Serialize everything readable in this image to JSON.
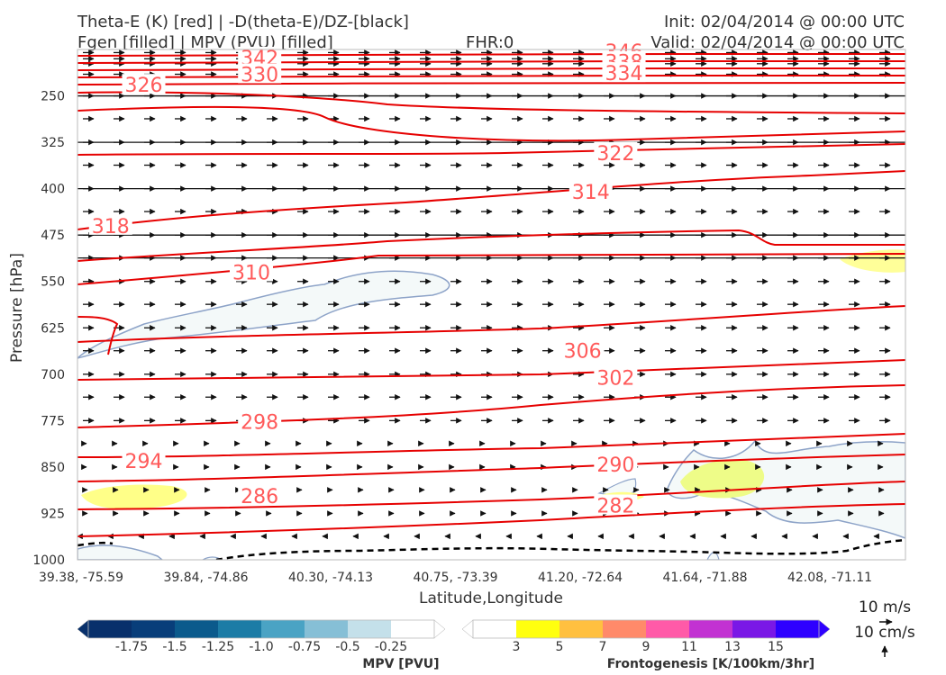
{
  "header": {
    "title_line1": "Theta-E (K) [red] | -D(theta-E)/DZ-[black]",
    "title_line2": "Fgen [filled] | MPV (PVU) [filled]",
    "fhr": "FHR:0",
    "init": "Init: 02/04/2014 @ 00:00 UTC",
    "valid": "Valid: 02/04/2014 @ 00:00 UTC"
  },
  "chart_data": {
    "type": "cross-section",
    "xlabel": "Latitude,Longitude",
    "ylabel": "Pressure [hPa]",
    "x_ticks": [
      "39.38, -75.59",
      "39.84, -74.86",
      "40.30, -74.13",
      "40.75, -73.39",
      "41.20, -72.64",
      "41.64, -71.88",
      "42.08, -71.11"
    ],
    "y_ticks": [
      250,
      325,
      400,
      475,
      550,
      625,
      700,
      775,
      850,
      925,
      1000
    ],
    "ylim": [
      1000,
      175
    ],
    "contour_labels": [
      {
        "value": "342",
        "x": 0.22,
        "p": 188
      },
      {
        "value": "330",
        "x": 0.22,
        "p": 215
      },
      {
        "value": "326",
        "x": 0.08,
        "p": 232
      },
      {
        "value": "346",
        "x": 0.66,
        "p": 178
      },
      {
        "value": "338",
        "x": 0.66,
        "p": 195
      },
      {
        "value": "334",
        "x": 0.66,
        "p": 213
      },
      {
        "value": "322",
        "x": 0.65,
        "p": 342
      },
      {
        "value": "314",
        "x": 0.62,
        "p": 405
      },
      {
        "value": "318",
        "x": 0.04,
        "p": 460
      },
      {
        "value": "310",
        "x": 0.21,
        "p": 535
      },
      {
        "value": "306",
        "x": 0.61,
        "p": 662
      },
      {
        "value": "302",
        "x": 0.65,
        "p": 705
      },
      {
        "value": "298",
        "x": 0.22,
        "p": 777
      },
      {
        "value": "294",
        "x": 0.08,
        "p": 840
      },
      {
        "value": "290",
        "x": 0.65,
        "p": 846
      },
      {
        "value": "286",
        "x": 0.22,
        "p": 897
      },
      {
        "value": "282",
        "x": 0.65,
        "p": 912
      }
    ],
    "mpv_colorbar": {
      "label": "MPV [PVU]",
      "ticks": [
        "-1.75",
        "-1.5",
        "-1.25",
        "-1.0",
        "-0.75",
        "-0.5",
        "-0.25"
      ],
      "colors": [
        "#08306b",
        "#083e7a",
        "#0b5a8c",
        "#1c7ca6",
        "#4aa3c4",
        "#86bfd6",
        "#c4e0ea",
        "#ffffff"
      ]
    },
    "fgen_colorbar": {
      "label": "Frontogenesis [K/100km/3hr]",
      "ticks": [
        "3",
        "5",
        "7",
        "9",
        "11",
        "13",
        "15"
      ],
      "colors": [
        "#ffffff",
        "#ffff0f",
        "#ffc040",
        "#ff8a6a",
        "#ff5aa8",
        "#c232d2",
        "#7a18e6",
        "#2e00ff"
      ]
    }
  },
  "legend": {
    "vector_u": "10 m/s",
    "vector_w": "10 cm/s"
  }
}
